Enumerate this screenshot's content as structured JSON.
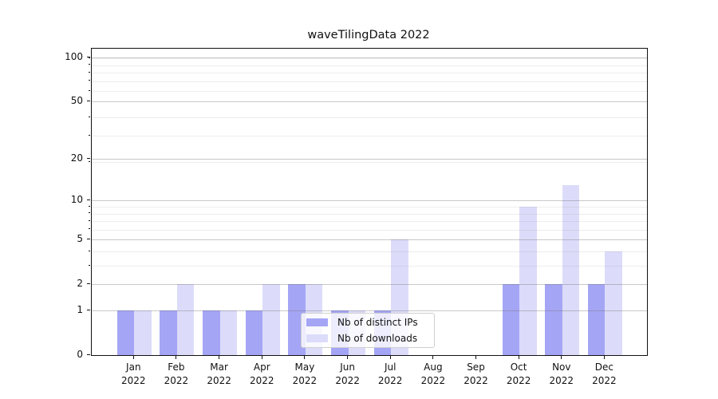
{
  "title": "waveTilingData 2022",
  "chart_data": {
    "type": "bar",
    "title": "waveTilingData 2022",
    "categories": [
      "Jan 2022",
      "Feb 2022",
      "Mar 2022",
      "Apr 2022",
      "May 2022",
      "Jun 2022",
      "Jul 2022",
      "Aug 2022",
      "Sep 2022",
      "Oct 2022",
      "Nov 2022",
      "Dec 2022"
    ],
    "x_labels": [
      {
        "month": "Jan",
        "year": "2022"
      },
      {
        "month": "Feb",
        "year": "2022"
      },
      {
        "month": "Mar",
        "year": "2022"
      },
      {
        "month": "Apr",
        "year": "2022"
      },
      {
        "month": "May",
        "year": "2022"
      },
      {
        "month": "Jun",
        "year": "2022"
      },
      {
        "month": "Jul",
        "year": "2022"
      },
      {
        "month": "Aug",
        "year": "2022"
      },
      {
        "month": "Sep",
        "year": "2022"
      },
      {
        "month": "Oct",
        "year": "2022"
      },
      {
        "month": "Nov",
        "year": "2022"
      },
      {
        "month": "Dec",
        "year": "2022"
      }
    ],
    "series": [
      {
        "name": "Nb of distinct IPs",
        "color": "#a5a5f6",
        "values": [
          1,
          1,
          1,
          1,
          2,
          1,
          1,
          0,
          0,
          2,
          2,
          2
        ]
      },
      {
        "name": "Nb of downloads",
        "color": "#dcdcfa",
        "values": [
          1,
          2,
          1,
          2,
          2,
          1,
          5,
          0,
          0,
          9,
          13,
          4
        ]
      }
    ],
    "y_axis": {
      "scale": "log10(1+x)",
      "major_ticks": [
        0,
        1,
        2,
        5,
        10,
        20,
        50,
        100
      ],
      "major_tick_labels": [
        "0",
        "1",
        "2",
        "5",
        "10",
        "20",
        "50",
        "100"
      ],
      "minor_ticks": [
        3,
        4,
        6,
        7,
        8,
        9,
        19,
        29,
        39,
        59,
        69,
        79,
        89,
        99
      ],
      "range_top": 112
    },
    "xlabel": "",
    "ylabel": "",
    "grid": "horizontal major and minor gridlines, drawn over bars",
    "legend": {
      "position": "lower center",
      "entries": [
        "Nb of distinct IPs",
        "Nb of downloads"
      ]
    }
  }
}
